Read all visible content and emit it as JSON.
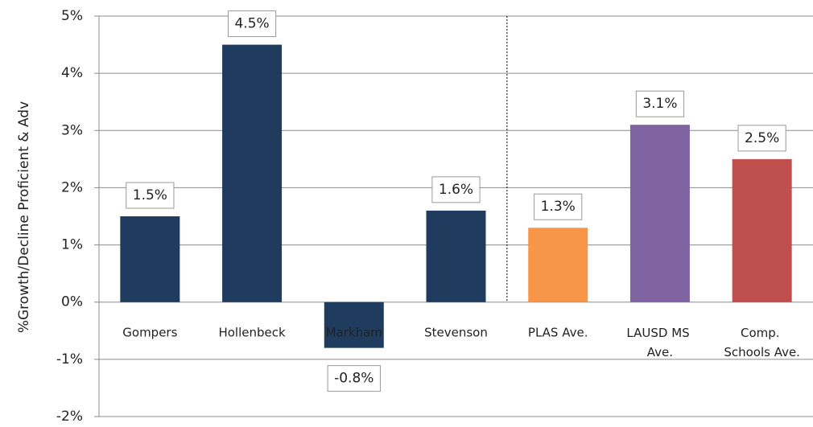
{
  "chart_data": {
    "type": "bar",
    "y_label": "%Growth/Decline Proficient & Adv",
    "categories": [
      "Gompers",
      "Hollenbeck",
      "Markham",
      "Stevenson",
      "PLAS Ave.",
      "LAUSD MS\nAve.",
      "Comp.\nSchools Ave."
    ],
    "values": [
      1.5,
      4.5,
      -0.8,
      1.6,
      1.3,
      3.1,
      2.5
    ],
    "value_labels": [
      "1.5%",
      "4.5%",
      "-0.8%",
      "1.6%",
      "1.3%",
      "3.1%",
      "2.5%"
    ],
    "colors": [
      "#1f3b5e",
      "#1f3b5e",
      "#1f3b5e",
      "#1f3b5e",
      "#f79646",
      "#8064a2",
      "#c0504d"
    ],
    "ylim": [
      -2,
      5
    ],
    "yticks": [
      {
        "value": -2,
        "label": "-2%"
      },
      {
        "value": -1,
        "label": "-1%"
      },
      {
        "value": 0,
        "label": "0%"
      },
      {
        "value": 1,
        "label": "1%"
      },
      {
        "value": 2,
        "label": "2%"
      },
      {
        "value": 3,
        "label": "3%"
      },
      {
        "value": 4,
        "label": "4%"
      },
      {
        "value": 5,
        "label": "5%"
      }
    ],
    "grid": true
  }
}
